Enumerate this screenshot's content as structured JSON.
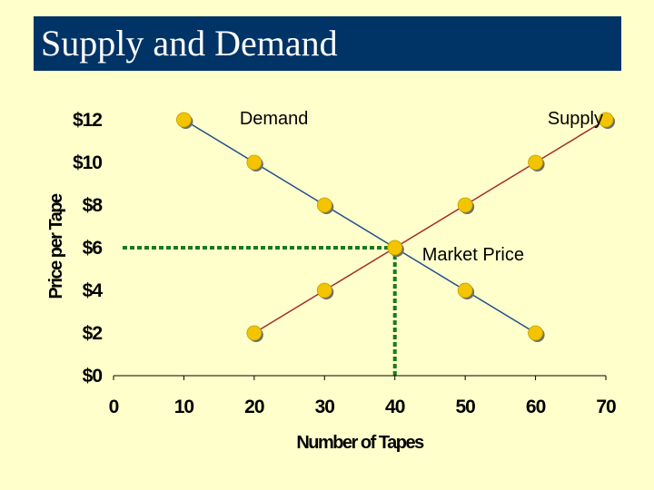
{
  "slide": {
    "title": "Supply and Demand"
  },
  "colors": {
    "background": "#ffffcc",
    "title_bar": "#003366",
    "title_text": "#ffffff",
    "demand_line": "#1f4e8c",
    "supply_line": "#a52a2a",
    "points": "#f5c400",
    "point_outline": "#6e6e6e",
    "market_price_guides": "#1a7a1a"
  },
  "chart_data": {
    "type": "line",
    "title": "",
    "xlabel": "Number of Tapes",
    "ylabel": "Price per Tape",
    "xlim": [
      0,
      70
    ],
    "ylim": [
      0,
      12
    ],
    "x_ticks": [
      "0",
      "10",
      "20",
      "30",
      "40",
      "50",
      "60",
      "70"
    ],
    "y_ticks": [
      "$0",
      "$2",
      "$4",
      "$6",
      "$8",
      "$10",
      "$12"
    ],
    "grid": false,
    "series": [
      {
        "name": "Demand",
        "points": [
          [
            10,
            12
          ],
          [
            20,
            10
          ],
          [
            30,
            8
          ],
          [
            40,
            6
          ],
          [
            50,
            4
          ],
          [
            60,
            2
          ]
        ]
      },
      {
        "name": "Supply",
        "points": [
          [
            20,
            2
          ],
          [
            30,
            4
          ],
          [
            40,
            6
          ],
          [
            50,
            8
          ],
          [
            60,
            10
          ],
          [
            70,
            12
          ]
        ]
      }
    ],
    "annotations": [
      {
        "text": "Market Price",
        "x": 40,
        "y": 6
      }
    ],
    "equilibrium": {
      "x": 40,
      "y": 6
    }
  }
}
